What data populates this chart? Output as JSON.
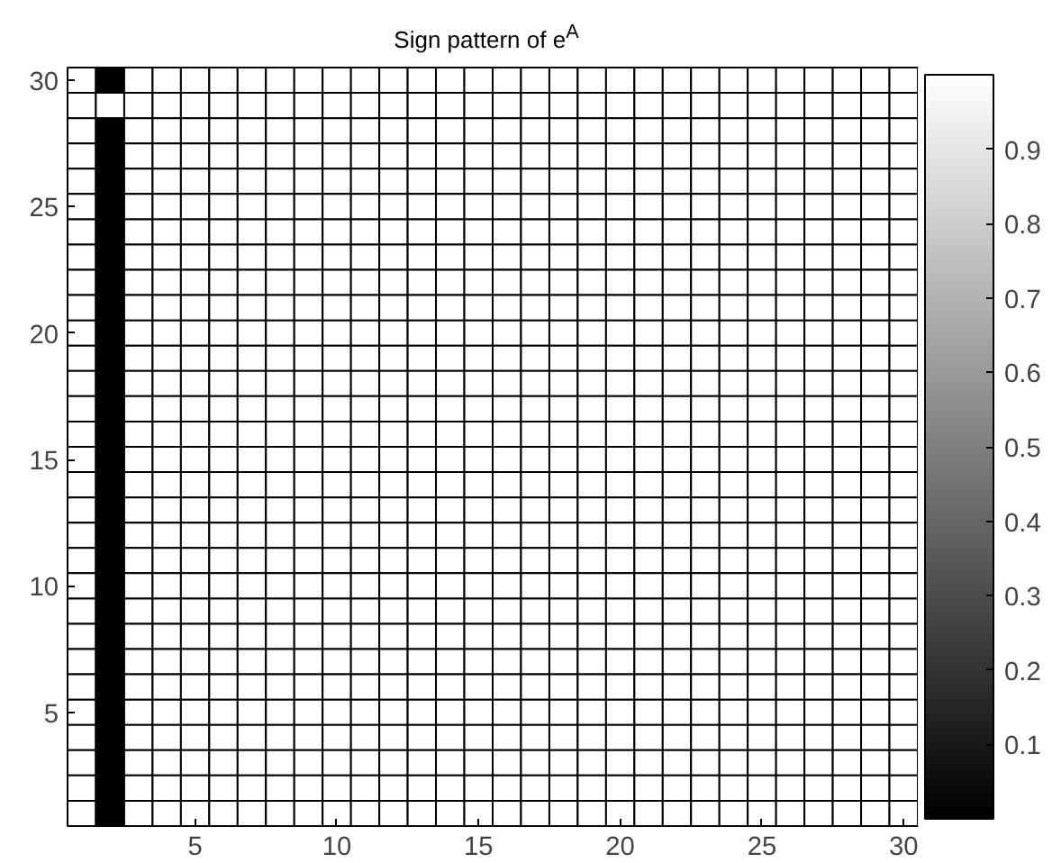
{
  "chart_data": {
    "type": "heatmap",
    "title": "Sign pattern of e$^{A}$",
    "categories": [
      null,
      null,
      null,
      null,
      "5",
      null,
      null,
      null,
      null,
      "10",
      null,
      null,
      null,
      null,
      "15",
      null,
      null,
      null,
      null,
      "20",
      null,
      null,
      null,
      null,
      "25",
      null,
      null,
      null,
      null,
      "30"
    ],
    "y_categories": [
      "30",
      null,
      null,
      null,
      null,
      "25",
      null,
      null,
      null,
      null,
      "20",
      null,
      null,
      null,
      null,
      "15",
      null,
      null,
      null,
      null,
      "10",
      null,
      null,
      null,
      null,
      "5",
      null,
      null,
      null,
      null
    ],
    "cells": [
      [
        1,
        0,
        1,
        1,
        1,
        1,
        1,
        1,
        1,
        1,
        1,
        1,
        1,
        1,
        1,
        1,
        1,
        1,
        1,
        1,
        1,
        1,
        1,
        1,
        1,
        1,
        1,
        1,
        1,
        1
      ],
      [
        1,
        1,
        1,
        1,
        1,
        1,
        1,
        1,
        1,
        1,
        1,
        1,
        1,
        1,
        1,
        1,
        1,
        1,
        1,
        1,
        1,
        1,
        1,
        1,
        1,
        1,
        1,
        1,
        1,
        1
      ],
      [
        1,
        0,
        1,
        1,
        1,
        1,
        1,
        1,
        1,
        1,
        1,
        1,
        1,
        1,
        1,
        1,
        1,
        1,
        1,
        1,
        1,
        1,
        1,
        1,
        1,
        1,
        1,
        1,
        1,
        1
      ],
      [
        1,
        0,
        1,
        1,
        1,
        1,
        1,
        1,
        1,
        1,
        1,
        1,
        1,
        1,
        1,
        1,
        1,
        1,
        1,
        1,
        1,
        1,
        1,
        1,
        1,
        1,
        1,
        1,
        1,
        1
      ],
      [
        1,
        0,
        1,
        1,
        1,
        1,
        1,
        1,
        1,
        1,
        1,
        1,
        1,
        1,
        1,
        1,
        1,
        1,
        1,
        1,
        1,
        1,
        1,
        1,
        1,
        1,
        1,
        1,
        1,
        1
      ],
      [
        1,
        0,
        1,
        1,
        1,
        1,
        1,
        1,
        1,
        1,
        1,
        1,
        1,
        1,
        1,
        1,
        1,
        1,
        1,
        1,
        1,
        1,
        1,
        1,
        1,
        1,
        1,
        1,
        1,
        1
      ],
      [
        1,
        0,
        1,
        1,
        1,
        1,
        1,
        1,
        1,
        1,
        1,
        1,
        1,
        1,
        1,
        1,
        1,
        1,
        1,
        1,
        1,
        1,
        1,
        1,
        1,
        1,
        1,
        1,
        1,
        1
      ],
      [
        1,
        0,
        1,
        1,
        1,
        1,
        1,
        1,
        1,
        1,
        1,
        1,
        1,
        1,
        1,
        1,
        1,
        1,
        1,
        1,
        1,
        1,
        1,
        1,
        1,
        1,
        1,
        1,
        1,
        1
      ],
      [
        1,
        0,
        1,
        1,
        1,
        1,
        1,
        1,
        1,
        1,
        1,
        1,
        1,
        1,
        1,
        1,
        1,
        1,
        1,
        1,
        1,
        1,
        1,
        1,
        1,
        1,
        1,
        1,
        1,
        1
      ],
      [
        1,
        0,
        1,
        1,
        1,
        1,
        1,
        1,
        1,
        1,
        1,
        1,
        1,
        1,
        1,
        1,
        1,
        1,
        1,
        1,
        1,
        1,
        1,
        1,
        1,
        1,
        1,
        1,
        1,
        1
      ],
      [
        1,
        0,
        1,
        1,
        1,
        1,
        1,
        1,
        1,
        1,
        1,
        1,
        1,
        1,
        1,
        1,
        1,
        1,
        1,
        1,
        1,
        1,
        1,
        1,
        1,
        1,
        1,
        1,
        1,
        1
      ],
      [
        1,
        0,
        1,
        1,
        1,
        1,
        1,
        1,
        1,
        1,
        1,
        1,
        1,
        1,
        1,
        1,
        1,
        1,
        1,
        1,
        1,
        1,
        1,
        1,
        1,
        1,
        1,
        1,
        1,
        1
      ],
      [
        1,
        0,
        1,
        1,
        1,
        1,
        1,
        1,
        1,
        1,
        1,
        1,
        1,
        1,
        1,
        1,
        1,
        1,
        1,
        1,
        1,
        1,
        1,
        1,
        1,
        1,
        1,
        1,
        1,
        1
      ],
      [
        1,
        0,
        1,
        1,
        1,
        1,
        1,
        1,
        1,
        1,
        1,
        1,
        1,
        1,
        1,
        1,
        1,
        1,
        1,
        1,
        1,
        1,
        1,
        1,
        1,
        1,
        1,
        1,
        1,
        1
      ],
      [
        1,
        0,
        1,
        1,
        1,
        1,
        1,
        1,
        1,
        1,
        1,
        1,
        1,
        1,
        1,
        1,
        1,
        1,
        1,
        1,
        1,
        1,
        1,
        1,
        1,
        1,
        1,
        1,
        1,
        1
      ],
      [
        1,
        0,
        1,
        1,
        1,
        1,
        1,
        1,
        1,
        1,
        1,
        1,
        1,
        1,
        1,
        1,
        1,
        1,
        1,
        1,
        1,
        1,
        1,
        1,
        1,
        1,
        1,
        1,
        1,
        1
      ],
      [
        1,
        0,
        1,
        1,
        1,
        1,
        1,
        1,
        1,
        1,
        1,
        1,
        1,
        1,
        1,
        1,
        1,
        1,
        1,
        1,
        1,
        1,
        1,
        1,
        1,
        1,
        1,
        1,
        1,
        1
      ],
      [
        1,
        0,
        1,
        1,
        1,
        1,
        1,
        1,
        1,
        1,
        1,
        1,
        1,
        1,
        1,
        1,
        1,
        1,
        1,
        1,
        1,
        1,
        1,
        1,
        1,
        1,
        1,
        1,
        1,
        1
      ],
      [
        1,
        0,
        1,
        1,
        1,
        1,
        1,
        1,
        1,
        1,
        1,
        1,
        1,
        1,
        1,
        1,
        1,
        1,
        1,
        1,
        1,
        1,
        1,
        1,
        1,
        1,
        1,
        1,
        1,
        1
      ],
      [
        1,
        0,
        1,
        1,
        1,
        1,
        1,
        1,
        1,
        1,
        1,
        1,
        1,
        1,
        1,
        1,
        1,
        1,
        1,
        1,
        1,
        1,
        1,
        1,
        1,
        1,
        1,
        1,
        1,
        1
      ],
      [
        1,
        0,
        1,
        1,
        1,
        1,
        1,
        1,
        1,
        1,
        1,
        1,
        1,
        1,
        1,
        1,
        1,
        1,
        1,
        1,
        1,
        1,
        1,
        1,
        1,
        1,
        1,
        1,
        1,
        1
      ],
      [
        1,
        0,
        1,
        1,
        1,
        1,
        1,
        1,
        1,
        1,
        1,
        1,
        1,
        1,
        1,
        1,
        1,
        1,
        1,
        1,
        1,
        1,
        1,
        1,
        1,
        1,
        1,
        1,
        1,
        1
      ],
      [
        1,
        0,
        1,
        1,
        1,
        1,
        1,
        1,
        1,
        1,
        1,
        1,
        1,
        1,
        1,
        1,
        1,
        1,
        1,
        1,
        1,
        1,
        1,
        1,
        1,
        1,
        1,
        1,
        1,
        1
      ],
      [
        1,
        0,
        1,
        1,
        1,
        1,
        1,
        1,
        1,
        1,
        1,
        1,
        1,
        1,
        1,
        1,
        1,
        1,
        1,
        1,
        1,
        1,
        1,
        1,
        1,
        1,
        1,
        1,
        1,
        1
      ],
      [
        1,
        0,
        1,
        1,
        1,
        1,
        1,
        1,
        1,
        1,
        1,
        1,
        1,
        1,
        1,
        1,
        1,
        1,
        1,
        1,
        1,
        1,
        1,
        1,
        1,
        1,
        1,
        1,
        1,
        1
      ],
      [
        1,
        0,
        1,
        1,
        1,
        1,
        1,
        1,
        1,
        1,
        1,
        1,
        1,
        1,
        1,
        1,
        1,
        1,
        1,
        1,
        1,
        1,
        1,
        1,
        1,
        1,
        1,
        1,
        1,
        1
      ],
      [
        1,
        0,
        1,
        1,
        1,
        1,
        1,
        1,
        1,
        1,
        1,
        1,
        1,
        1,
        1,
        1,
        1,
        1,
        1,
        1,
        1,
        1,
        1,
        1,
        1,
        1,
        1,
        1,
        1,
        1
      ],
      [
        1,
        0,
        1,
        1,
        1,
        1,
        1,
        1,
        1,
        1,
        1,
        1,
        1,
        1,
        1,
        1,
        1,
        1,
        1,
        1,
        1,
        1,
        1,
        1,
        1,
        1,
        1,
        1,
        1,
        1
      ],
      [
        1,
        0,
        1,
        1,
        1,
        1,
        1,
        1,
        1,
        1,
        1,
        1,
        1,
        1,
        1,
        1,
        1,
        1,
        1,
        1,
        1,
        1,
        1,
        1,
        1,
        1,
        1,
        1,
        1,
        1
      ],
      [
        1,
        0,
        1,
        1,
        1,
        1,
        1,
        1,
        1,
        1,
        1,
        1,
        1,
        1,
        1,
        1,
        1,
        1,
        1,
        1,
        1,
        1,
        1,
        1,
        1,
        1,
        1,
        1,
        1,
        1
      ]
    ],
    "clim": [
      0,
      1
    ],
    "cticks": [
      0.1,
      0.2,
      0.3,
      0.4,
      0.5,
      0.6,
      0.7,
      0.8,
      0.9
    ]
  }
}
